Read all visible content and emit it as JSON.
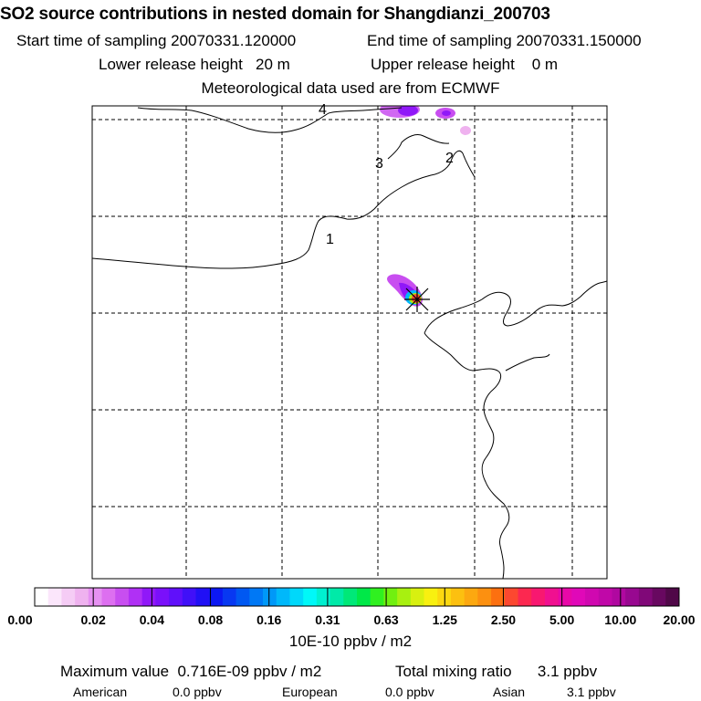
{
  "header": {
    "title": "SO2 source contributions in nested domain for Shangdianzi_200703",
    "start_time": "Start time of sampling 20070331.120000",
    "end_time": "End time of sampling 20070331.150000",
    "lower_height": "Lower release height   20 m",
    "upper_height": "Upper release height    0 m",
    "met_data": "Meteorological data used are from ECMWF"
  },
  "map": {
    "contour_labels": [
      "1",
      "2",
      "3",
      "4"
    ],
    "station_marker": "x-cross-icon"
  },
  "colorbar": {
    "ticks": [
      "0.00",
      "0.02",
      "0.04",
      "0.08",
      "0.16",
      "0.31",
      "0.63",
      "1.25",
      "2.50",
      "5.00",
      "10.00",
      "20.00"
    ],
    "units": "10E-10 ppbv / m2",
    "colors": [
      "#ffffff",
      "#fbe6fb",
      "#f5ccf5",
      "#efb2ef",
      "#e691f2",
      "#dd6ff0",
      "#c84ef0",
      "#b030f5",
      "#9018f8",
      "#7a10fa",
      "#6010fa",
      "#4010f8",
      "#2010f5",
      "#0c18f2",
      "#0838f2",
      "#0058f2",
      "#0078f5",
      "#0098f8",
      "#00b8fa",
      "#00d8fa",
      "#00f8f8",
      "#00f0d0",
      "#00eaa8",
      "#00e878",
      "#00e848",
      "#30f020",
      "#70f010",
      "#a8f010",
      "#d8f010",
      "#f8f010",
      "#fcd810",
      "#fcc010",
      "#fca810",
      "#fc9010",
      "#fc7010",
      "#fc4830",
      "#fc2850",
      "#f81870",
      "#f01090",
      "#e808a8",
      "#e008b8",
      "#d008b0",
      "#c008a8",
      "#b008a0",
      "#980890",
      "#800878",
      "#680860",
      "#500848"
    ]
  },
  "footer": {
    "max_value": "Maximum value  0.716E-09 ppbv / m2",
    "total_mixing": "Total mixing ratio      3.1 ppbv",
    "american_label": "American",
    "american_value": "0.0 ppbv",
    "european_label": "European",
    "european_value": "0.0 ppbv",
    "asian_label": "Asian",
    "asian_value": "3.1 ppbv"
  }
}
